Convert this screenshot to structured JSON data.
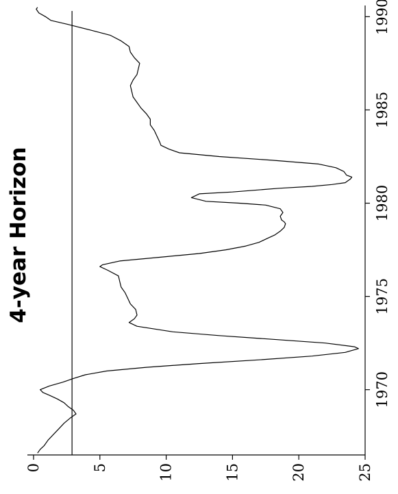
{
  "chart_data": {
    "type": "line",
    "title": "4-year Horizon",
    "orientation": "rotated-90-ccw",
    "xlabel": "",
    "ylabel": "",
    "xlim": [
      1966.5,
      1990.6
    ],
    "ylim": [
      0,
      25
    ],
    "x_ticks": [
      1970,
      1975,
      1980,
      1985,
      1990
    ],
    "y_ticks": [
      0,
      5,
      10,
      15,
      20,
      25
    ],
    "grid": false,
    "reference_line": {
      "value": 2.9
    },
    "series": [
      {
        "x": [
          1966.6,
          1966.8,
          1967.0,
          1967.3,
          1967.6,
          1967.9,
          1968.2,
          1968.5,
          1968.7,
          1968.9,
          1969.1,
          1969.3,
          1969.5,
          1969.7,
          1969.85,
          1970.0,
          1970.2,
          1970.4,
          1970.6,
          1970.8,
          1971.0,
          1971.2,
          1971.4,
          1971.6,
          1971.8,
          1972.0,
          1972.2,
          1972.3,
          1972.5,
          1972.7,
          1972.9,
          1973.1,
          1973.4,
          1973.6,
          1973.8,
          1974.0,
          1974.3,
          1974.6,
          1974.9,
          1975.2,
          1975.5,
          1975.8,
          1976.1,
          1976.4,
          1976.6,
          1976.7,
          1976.9,
          1977.1,
          1977.3,
          1977.5,
          1977.7,
          1977.9,
          1978.1,
          1978.3,
          1978.5,
          1978.7,
          1978.9,
          1979.0,
          1979.1,
          1979.3,
          1979.5,
          1979.7,
          1979.9,
          1980.0,
          1980.1,
          1980.3,
          1980.5,
          1980.6,
          1980.8,
          1980.9,
          1981.0,
          1981.1,
          1981.3,
          1981.4,
          1981.5,
          1981.7,
          1981.9,
          1982.1,
          1982.3,
          1982.5,
          1982.7,
          1982.9,
          1983.1,
          1983.3,
          1983.6,
          1983.9,
          1984.2,
          1984.5,
          1984.8,
          1985.1,
          1985.4,
          1985.7,
          1986.0,
          1986.3,
          1986.6,
          1986.9,
          1987.2,
          1987.5,
          1987.8,
          1988.1,
          1988.4,
          1988.7,
          1989.0,
          1989.3,
          1989.6,
          1989.8,
          1990.0,
          1990.2,
          1990.4,
          1990.5
        ],
        "y": [
          0.3,
          0.5,
          0.8,
          1.1,
          1.5,
          1.9,
          2.3,
          2.8,
          3.2,
          3.0,
          2.6,
          2.3,
          1.8,
          1.2,
          0.7,
          0.5,
          1.2,
          2.2,
          3.0,
          3.9,
          5.5,
          8.5,
          12.5,
          17.0,
          21.0,
          23.5,
          24.5,
          24.2,
          22.0,
          18.0,
          14.0,
          10.5,
          7.8,
          7.2,
          7.6,
          7.8,
          7.7,
          7.3,
          7.1,
          6.9,
          6.6,
          6.5,
          6.4,
          5.6,
          5.0,
          5.2,
          6.5,
          9.5,
          12.5,
          14.5,
          16.0,
          17.0,
          17.6,
          18.2,
          18.6,
          18.9,
          19.0,
          18.9,
          18.7,
          18.6,
          18.8,
          18.6,
          17.5,
          15.5,
          13.0,
          11.9,
          12.5,
          15.0,
          18.5,
          21.0,
          22.5,
          23.5,
          23.9,
          24.0,
          23.6,
          23.4,
          22.8,
          21.5,
          18.0,
          14.0,
          11.0,
          10.2,
          9.6,
          9.5,
          9.3,
          9.1,
          8.8,
          8.8,
          8.5,
          8.1,
          7.8,
          7.5,
          7.4,
          7.3,
          7.5,
          7.8,
          7.9,
          8.0,
          7.6,
          7.3,
          7.2,
          6.6,
          5.8,
          4.2,
          2.5,
          1.3,
          0.9,
          0.4,
          0.2,
          0.3
        ]
      }
    ]
  }
}
